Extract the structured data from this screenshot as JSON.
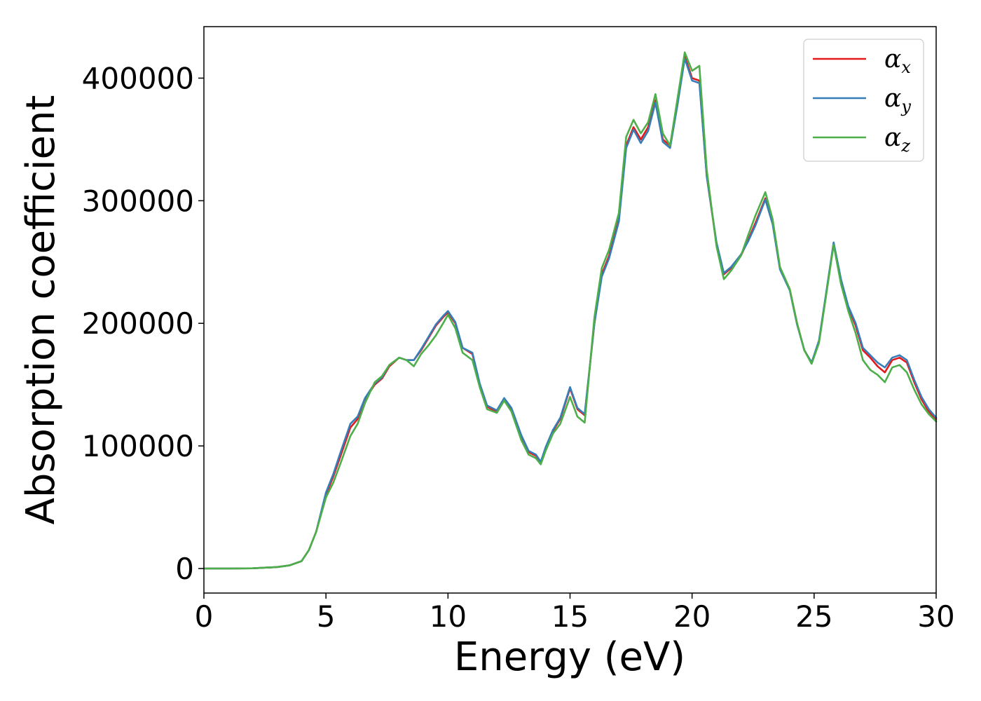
{
  "chart_data": {
    "type": "line",
    "xlabel": "Energy (eV)",
    "ylabel": "Absorption coefficient",
    "xlim": [
      0,
      30
    ],
    "ylim": [
      -20000,
      442000
    ],
    "xticks": [
      0,
      5,
      10,
      15,
      20,
      25,
      30
    ],
    "xtick_labels": [
      "0",
      "5",
      "10",
      "15",
      "20",
      "25",
      "30"
    ],
    "yticks": [
      0,
      100000,
      200000,
      300000,
      400000
    ],
    "ytick_labels": [
      "0",
      "100000",
      "200000",
      "300000",
      "400000"
    ],
    "grid": false,
    "legend_position": "top-right",
    "x": [
      0,
      1,
      2,
      3,
      3.5,
      4,
      4.3,
      4.6,
      5,
      5.3,
      5.6,
      6,
      6.3,
      6.6,
      7,
      7.3,
      7.6,
      8,
      8.3,
      8.6,
      8.9,
      9.2,
      9.5,
      9.8,
      10,
      10.3,
      10.6,
      11,
      11.3,
      11.6,
      12,
      12.3,
      12.6,
      13,
      13.3,
      13.6,
      13.8,
      14,
      14.3,
      14.6,
      15,
      15.3,
      15.6,
      16,
      16.3,
      16.6,
      17,
      17.3,
      17.6,
      17.9,
      18.2,
      18.5,
      18.8,
      19.1,
      19.4,
      19.7,
      20,
      20.3,
      20.6,
      21,
      21.3,
      21.6,
      22,
      22.3,
      22.6,
      23,
      23.3,
      23.6,
      24,
      24.3,
      24.6,
      24.9,
      25.2,
      25.5,
      25.8,
      26.1,
      26.4,
      26.7,
      27,
      27.3,
      27.6,
      27.9,
      28.2,
      28.5,
      28.8,
      29.1,
      29.4,
      29.7,
      30
    ],
    "series": [
      {
        "name": "αx",
        "label_base": "α",
        "label_sub": "x",
        "color": "#e41a1c",
        "values": [
          0,
          0,
          200,
          1200,
          2500,
          6000,
          15000,
          30000,
          60000,
          75000,
          92000,
          115000,
          122000,
          138000,
          150000,
          155000,
          165000,
          172000,
          170000,
          170000,
          178000,
          188000,
          198000,
          205000,
          209000,
          200000,
          180000,
          175000,
          150000,
          132000,
          128000,
          138000,
          130000,
          108000,
          95000,
          92000,
          86000,
          98000,
          112000,
          122000,
          147000,
          130000,
          125000,
          200000,
          240000,
          255000,
          285000,
          345000,
          360000,
          350000,
          360000,
          382000,
          350000,
          345000,
          380000,
          418000,
          400000,
          398000,
          320000,
          265000,
          240000,
          245000,
          255000,
          268000,
          282000,
          302000,
          282000,
          245000,
          228000,
          200000,
          178000,
          168000,
          185000,
          225000,
          265000,
          235000,
          213000,
          198000,
          178000,
          172000,
          165000,
          160000,
          170000,
          172000,
          168000,
          152000,
          138000,
          128000,
          122000
        ]
      },
      {
        "name": "αy",
        "label_base": "α",
        "label_sub": "y",
        "color": "#377eb8",
        "values": [
          0,
          0,
          200,
          1200,
          2500,
          6000,
          15000,
          30000,
          62000,
          77000,
          95000,
          118000,
          124000,
          139000,
          151000,
          156000,
          166000,
          172000,
          170000,
          170000,
          179000,
          189000,
          199000,
          206000,
          210000,
          201000,
          180000,
          176000,
          151000,
          133000,
          129000,
          139000,
          131000,
          109000,
          96000,
          93000,
          87000,
          99000,
          113000,
          123000,
          148000,
          131000,
          126000,
          200000,
          238000,
          253000,
          283000,
          343000,
          358000,
          347000,
          357000,
          380000,
          348000,
          343000,
          378000,
          416000,
          398000,
          396000,
          320000,
          266000,
          241000,
          246000,
          256000,
          267000,
          280000,
          301000,
          281000,
          244000,
          227000,
          199000,
          178000,
          168000,
          186000,
          226000,
          266000,
          236000,
          214000,
          200000,
          180000,
          174000,
          168000,
          164000,
          172000,
          174000,
          170000,
          154000,
          140000,
          130000,
          123000
        ]
      },
      {
        "name": "αz",
        "label_base": "α",
        "label_sub": "z",
        "color": "#4daf4a",
        "values": [
          0,
          0,
          200,
          1200,
          2500,
          6000,
          15000,
          30000,
          58000,
          70000,
          86000,
          108000,
          118000,
          135000,
          152000,
          157000,
          166000,
          172000,
          170000,
          165000,
          175000,
          182000,
          190000,
          200000,
          207000,
          196000,
          176000,
          170000,
          148000,
          130000,
          127000,
          137000,
          128000,
          105000,
          93000,
          90000,
          85000,
          96000,
          110000,
          118000,
          140000,
          124000,
          119000,
          205000,
          245000,
          260000,
          290000,
          352000,
          366000,
          355000,
          364000,
          387000,
          355000,
          345000,
          383000,
          421000,
          406000,
          410000,
          325000,
          263000,
          236000,
          243000,
          255000,
          272000,
          288000,
          307000,
          285000,
          246000,
          228000,
          200000,
          178000,
          167000,
          184000,
          224000,
          264000,
          232000,
          210000,
          192000,
          170000,
          162000,
          158000,
          152000,
          164000,
          166000,
          160000,
          146000,
          134000,
          126000,
          120000
        ]
      }
    ]
  }
}
